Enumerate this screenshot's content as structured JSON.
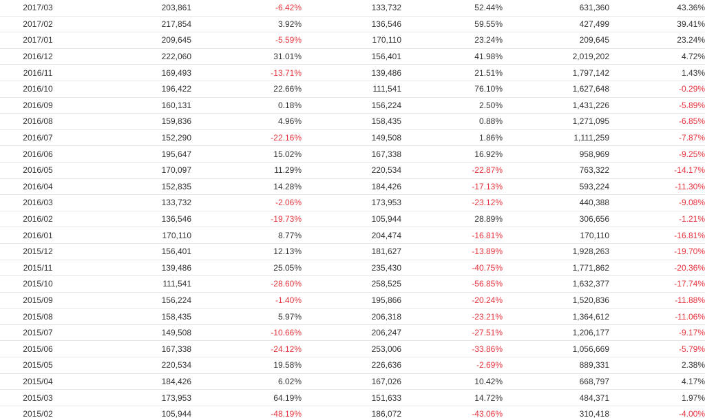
{
  "colors": {
    "negative": "#e5333d",
    "text": "#333333",
    "row_border": "#e6e6e6"
  },
  "table": {
    "rows": [
      {
        "period": "2017/03",
        "v1": "203,861",
        "p1": "-6.42%",
        "v2": "133,732",
        "p2": "52.44%",
        "v3": "631,360",
        "p3": "43.36%"
      },
      {
        "period": "2017/02",
        "v1": "217,854",
        "p1": "3.92%",
        "v2": "136,546",
        "p2": "59.55%",
        "v3": "427,499",
        "p3": "39.41%"
      },
      {
        "period": "2017/01",
        "v1": "209,645",
        "p1": "-5.59%",
        "v2": "170,110",
        "p2": "23.24%",
        "v3": "209,645",
        "p3": "23.24%"
      },
      {
        "period": "2016/12",
        "v1": "222,060",
        "p1": "31.01%",
        "v2": "156,401",
        "p2": "41.98%",
        "v3": "2,019,202",
        "p3": "4.72%"
      },
      {
        "period": "2016/11",
        "v1": "169,493",
        "p1": "-13.71%",
        "v2": "139,486",
        "p2": "21.51%",
        "v3": "1,797,142",
        "p3": "1.43%"
      },
      {
        "period": "2016/10",
        "v1": "196,422",
        "p1": "22.66%",
        "v2": "111,541",
        "p2": "76.10%",
        "v3": "1,627,648",
        "p3": "-0.29%"
      },
      {
        "period": "2016/09",
        "v1": "160,131",
        "p1": "0.18%",
        "v2": "156,224",
        "p2": "2.50%",
        "v3": "1,431,226",
        "p3": "-5.89%"
      },
      {
        "period": "2016/08",
        "v1": "159,836",
        "p1": "4.96%",
        "v2": "158,435",
        "p2": "0.88%",
        "v3": "1,271,095",
        "p3": "-6.85%"
      },
      {
        "period": "2016/07",
        "v1": "152,290",
        "p1": "-22.16%",
        "v2": "149,508",
        "p2": "1.86%",
        "v3": "1,111,259",
        "p3": "-7.87%"
      },
      {
        "period": "2016/06",
        "v1": "195,647",
        "p1": "15.02%",
        "v2": "167,338",
        "p2": "16.92%",
        "v3": "958,969",
        "p3": "-9.25%"
      },
      {
        "period": "2016/05",
        "v1": "170,097",
        "p1": "11.29%",
        "v2": "220,534",
        "p2": "-22.87%",
        "v3": "763,322",
        "p3": "-14.17%"
      },
      {
        "period": "2016/04",
        "v1": "152,835",
        "p1": "14.28%",
        "v2": "184,426",
        "p2": "-17.13%",
        "v3": "593,224",
        "p3": "-11.30%"
      },
      {
        "period": "2016/03",
        "v1": "133,732",
        "p1": "-2.06%",
        "v2": "173,953",
        "p2": "-23.12%",
        "v3": "440,388",
        "p3": "-9.08%"
      },
      {
        "period": "2016/02",
        "v1": "136,546",
        "p1": "-19.73%",
        "v2": "105,944",
        "p2": "28.89%",
        "v3": "306,656",
        "p3": "-1.21%"
      },
      {
        "period": "2016/01",
        "v1": "170,110",
        "p1": "8.77%",
        "v2": "204,474",
        "p2": "-16.81%",
        "v3": "170,110",
        "p3": "-16.81%"
      },
      {
        "period": "2015/12",
        "v1": "156,401",
        "p1": "12.13%",
        "v2": "181,627",
        "p2": "-13.89%",
        "v3": "1,928,263",
        "p3": "-19.70%"
      },
      {
        "period": "2015/11",
        "v1": "139,486",
        "p1": "25.05%",
        "v2": "235,430",
        "p2": "-40.75%",
        "v3": "1,771,862",
        "p3": "-20.36%"
      },
      {
        "period": "2015/10",
        "v1": "111,541",
        "p1": "-28.60%",
        "v2": "258,525",
        "p2": "-56.85%",
        "v3": "1,632,377",
        "p3": "-17.74%"
      },
      {
        "period": "2015/09",
        "v1": "156,224",
        "p1": "-1.40%",
        "v2": "195,866",
        "p2": "-20.24%",
        "v3": "1,520,836",
        "p3": "-11.88%"
      },
      {
        "period": "2015/08",
        "v1": "158,435",
        "p1": "5.97%",
        "v2": "206,318",
        "p2": "-23.21%",
        "v3": "1,364,612",
        "p3": "-11.06%"
      },
      {
        "period": "2015/07",
        "v1": "149,508",
        "p1": "-10.66%",
        "v2": "206,247",
        "p2": "-27.51%",
        "v3": "1,206,177",
        "p3": "-9.17%"
      },
      {
        "period": "2015/06",
        "v1": "167,338",
        "p1": "-24.12%",
        "v2": "253,006",
        "p2": "-33.86%",
        "v3": "1,056,669",
        "p3": "-5.79%"
      },
      {
        "period": "2015/05",
        "v1": "220,534",
        "p1": "19.58%",
        "v2": "226,636",
        "p2": "-2.69%",
        "v3": "889,331",
        "p3": "2.38%"
      },
      {
        "period": "2015/04",
        "v1": "184,426",
        "p1": "6.02%",
        "v2": "167,026",
        "p2": "10.42%",
        "v3": "668,797",
        "p3": "4.17%"
      },
      {
        "period": "2015/03",
        "v1": "173,953",
        "p1": "64.19%",
        "v2": "151,633",
        "p2": "14.72%",
        "v3": "484,371",
        "p3": "1.97%"
      },
      {
        "period": "2015/02",
        "v1": "105,944",
        "p1": "-48.19%",
        "v2": "186,072",
        "p2": "-43.06%",
        "v3": "310,418",
        "p3": "-4.00%"
      }
    ]
  }
}
